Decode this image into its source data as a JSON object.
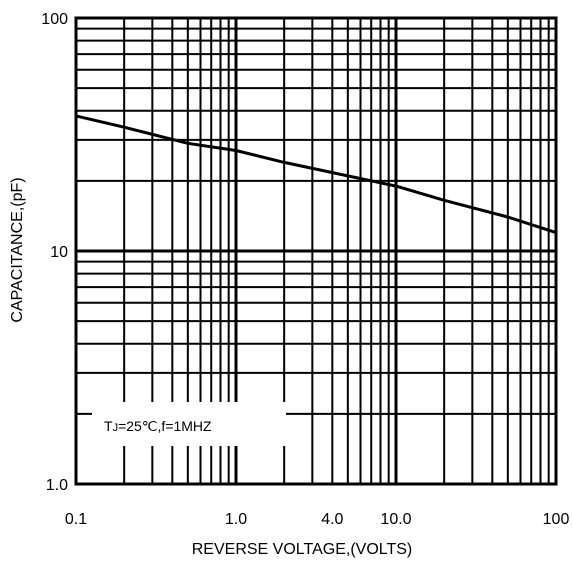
{
  "chart_data": {
    "type": "line",
    "xscale": "log",
    "yscale": "log",
    "xlim": [
      0.1,
      100
    ],
    "ylim": [
      1.0,
      100
    ],
    "xlabel": "REVERSE VOLTAGE,(VOLTS)",
    "ylabel": "CAPACITANCE,(pF)",
    "x_tick_labels": [
      {
        "value": 0.1,
        "label": "0.1"
      },
      {
        "value": 1.0,
        "label": "1.0"
      },
      {
        "value": 4.0,
        "label": "4.0"
      },
      {
        "value": 10.0,
        "label": "10.0"
      },
      {
        "value": 100,
        "label": "100"
      }
    ],
    "y_tick_labels": [
      {
        "value": 1.0,
        "label": "1.0"
      },
      {
        "value": 10,
        "label": "10"
      },
      {
        "value": 100,
        "label": "100"
      }
    ],
    "grid": true,
    "annotation": {
      "prefix": "T",
      "subscript": "J",
      "suffix": "=25℃,f=1MHZ"
    },
    "series": [
      {
        "x": [
          0.1,
          0.2,
          0.5,
          1.0,
          2.0,
          5.0,
          10.0,
          20.0,
          50.0,
          100
        ],
        "y": [
          38,
          34,
          29,
          27,
          24,
          21,
          19,
          16.5,
          14,
          12
        ]
      }
    ],
    "colors": {
      "line": "#000000",
      "grid": "#000000",
      "background": "#ffffff"
    }
  }
}
